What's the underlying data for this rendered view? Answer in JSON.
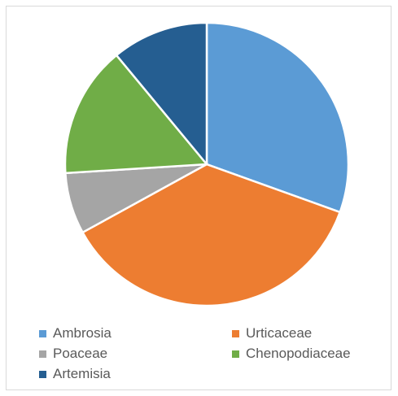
{
  "chart_data": {
    "type": "pie",
    "categories": [
      "Ambrosia",
      "Urticaceae",
      "Poaceae",
      "Chenopodiaceae",
      "Artemisia"
    ],
    "values": [
      30.5,
      36.5,
      7,
      15,
      11
    ],
    "colors": [
      "#5b9bd5",
      "#ed7d31",
      "#a5a5a5",
      "#70ad47",
      "#255e91"
    ],
    "title": "",
    "start_angle_deg": 0,
    "direction": "clockwise",
    "legend_position": "bottom"
  }
}
